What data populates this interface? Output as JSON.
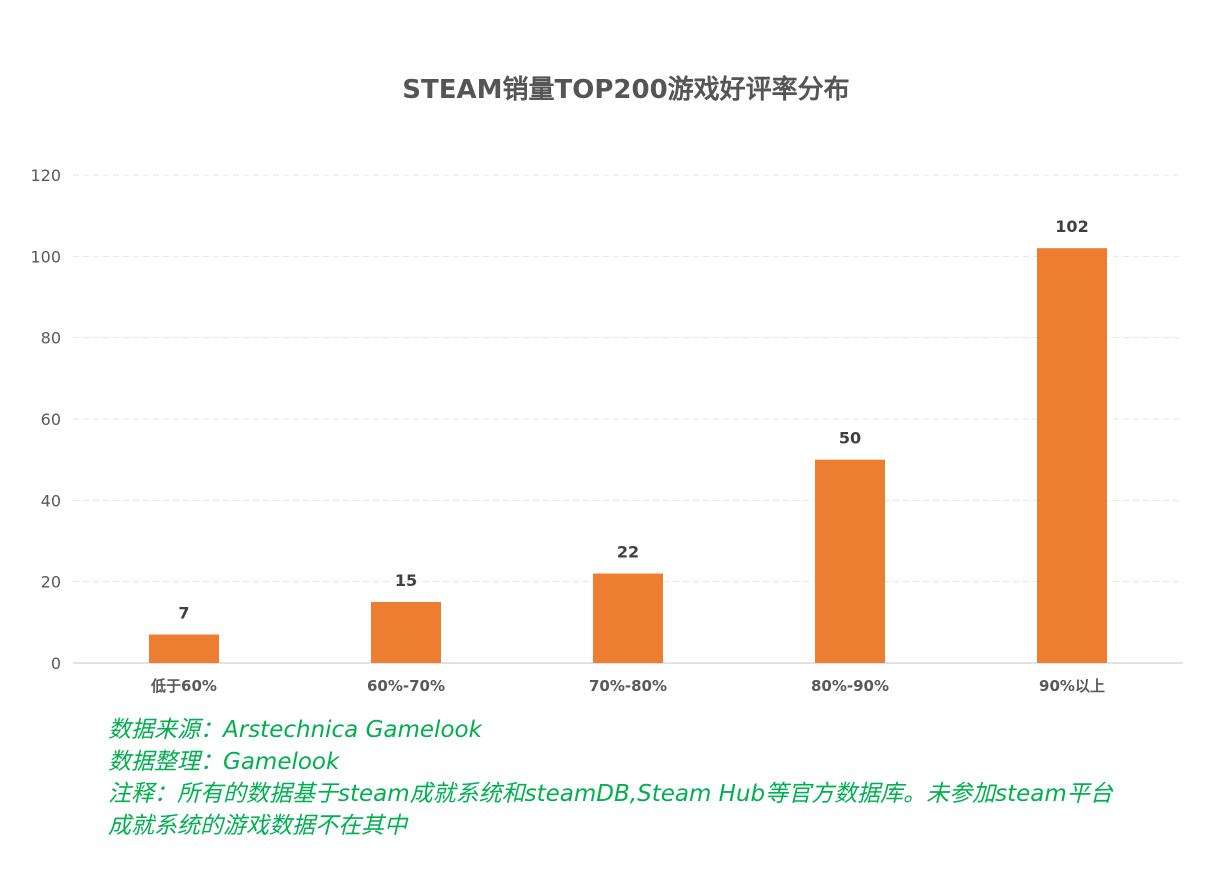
{
  "chart_data": {
    "type": "bar",
    "title": "STEAM销量TOP200游戏好评率分布",
    "categories": [
      "低于60%",
      "60%-70%",
      "70%-80%",
      "80%-90%",
      "90%以上"
    ],
    "values": [
      7,
      15,
      22,
      50,
      102
    ],
    "data_labels": [
      "7",
      "15",
      "22",
      "50",
      "102"
    ],
    "ylim": [
      0,
      120
    ],
    "yticks": [
      "0",
      "20",
      "40",
      "60",
      "80",
      "100",
      "120"
    ],
    "xlabel": "",
    "ylabel": "",
    "grid": true,
    "legend": "none",
    "bar_color": "#ed7d31"
  },
  "notes": {
    "line1": "数据来源：Arstechnica  Gamelook",
    "line2": "数据整理：Gamelook",
    "line3a": "注释：所有的数据基于steam成就系统和steamDB,Steam Hub等官方数据库。未参加steam平台",
    "line3b": "成就系统的游戏数据不在其中"
  }
}
